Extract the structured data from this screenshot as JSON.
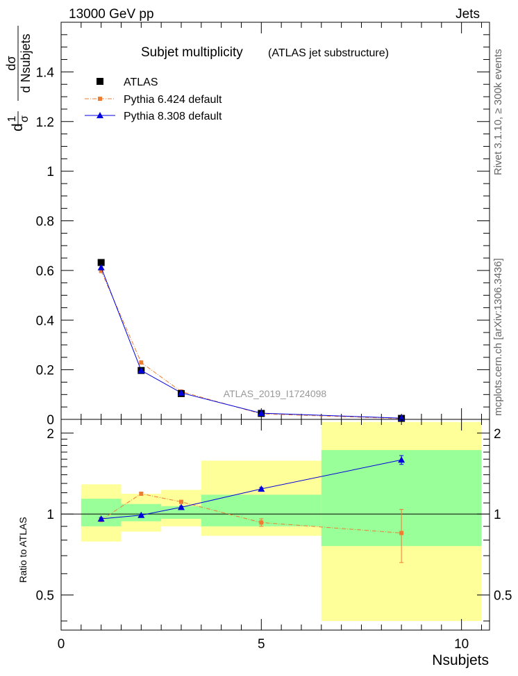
{
  "header": {
    "left": "13000 GeV pp",
    "right": "Jets"
  },
  "side": {
    "rivet": "Rivet 3.1.10, ≥ 300k events",
    "mcplots": "mcplots.cern.ch [arXiv:1306.3436]"
  },
  "title": {
    "main": "Subjet multiplicity",
    "sub": "(ATLAS jet substructure)"
  },
  "watermark": "ATLAS_2019_I1724098",
  "ylabel_top": {
    "f1_num": "1",
    "f1_den": "σ",
    "f2_num": "dσ",
    "f2_den": "d Nsubjets",
    "d": "d"
  },
  "ylabel_ratio": "Ratio to ATLAS",
  "xlabel": "Nsubjets",
  "colors": {
    "data": "#000000",
    "py6": "#ee7d32",
    "py8": "#0000dd",
    "band_inner": "#99ff99",
    "band_outer": "#ffff99"
  },
  "legend": [
    {
      "name": "ATLAS"
    },
    {
      "name": "Pythia 6.424 default"
    },
    {
      "name": "Pythia 8.308 default"
    }
  ],
  "chart_data": [
    {
      "type": "line",
      "title": "Subjet multiplicity",
      "xlabel": "Nsubjets",
      "ylabel": "1/σ dσ/d Nsubjets",
      "xlim": [
        0,
        10.7
      ],
      "ylim": [
        0,
        1.6
      ],
      "xticks": [
        "0",
        "5",
        "10"
      ],
      "yticks": [
        "0",
        "0.2",
        "0.4",
        "0.6",
        "0.8",
        "1",
        "1.2",
        "1.4"
      ],
      "bins": [
        [
          0.5,
          1.5
        ],
        [
          1.5,
          2.5
        ],
        [
          2.5,
          3.5
        ],
        [
          3.5,
          6.5
        ],
        [
          6.5,
          10.5
        ]
      ],
      "series": [
        {
          "name": "ATLAS",
          "x": [
            1,
            2,
            3,
            5,
            8.5
          ],
          "values": [
            0.632,
            0.197,
            0.104,
            0.024,
            0.004
          ]
        },
        {
          "name": "Pythia 6.424 default",
          "x": [
            1,
            2,
            3,
            5,
            8.5
          ],
          "values": [
            0.598,
            0.229,
            0.112,
            0.022,
            0.003
          ]
        },
        {
          "name": "Pythia 8.308 default",
          "x": [
            1,
            2,
            3,
            5,
            8.5
          ],
          "values": [
            0.612,
            0.197,
            0.107,
            0.025,
            0.005
          ]
        }
      ]
    },
    {
      "type": "line",
      "title": "Ratio to ATLAS",
      "xlabel": "Nsubjets",
      "ylabel": "Ratio to ATLAS",
      "xlim": [
        0,
        10.7
      ],
      "ylim": [
        0.37,
        2.25
      ],
      "yscale": "log",
      "yticks": [
        "0.5",
        "1",
        "2"
      ],
      "bands": {
        "inner": [
          [
            0.9,
            1.14
          ],
          [
            0.94,
            1.09
          ],
          [
            0.96,
            1.07
          ],
          [
            0.9,
            1.18
          ],
          [
            0.76,
            1.73
          ]
        ],
        "outer": [
          [
            0.79,
            1.29
          ],
          [
            0.86,
            1.19
          ],
          [
            0.9,
            1.23
          ],
          [
            0.83,
            1.58
          ],
          [
            0.4,
            2.2
          ]
        ]
      },
      "series": [
        {
          "name": "Pythia 6.424 default",
          "x": [
            1,
            2,
            3,
            5,
            8.5
          ],
          "values": [
            0.95,
            1.19,
            1.11,
            0.93,
            0.85
          ],
          "err": [
            0.01,
            0.015,
            0.015,
            0.03,
            0.19
          ]
        },
        {
          "name": "Pythia 8.308 default",
          "x": [
            1,
            2,
            3,
            5,
            8.5
          ],
          "values": [
            0.96,
            0.99,
            1.06,
            1.24,
            1.59
          ],
          "err": [
            0.01,
            0.01,
            0.01,
            0.015,
            0.06
          ]
        }
      ]
    }
  ]
}
